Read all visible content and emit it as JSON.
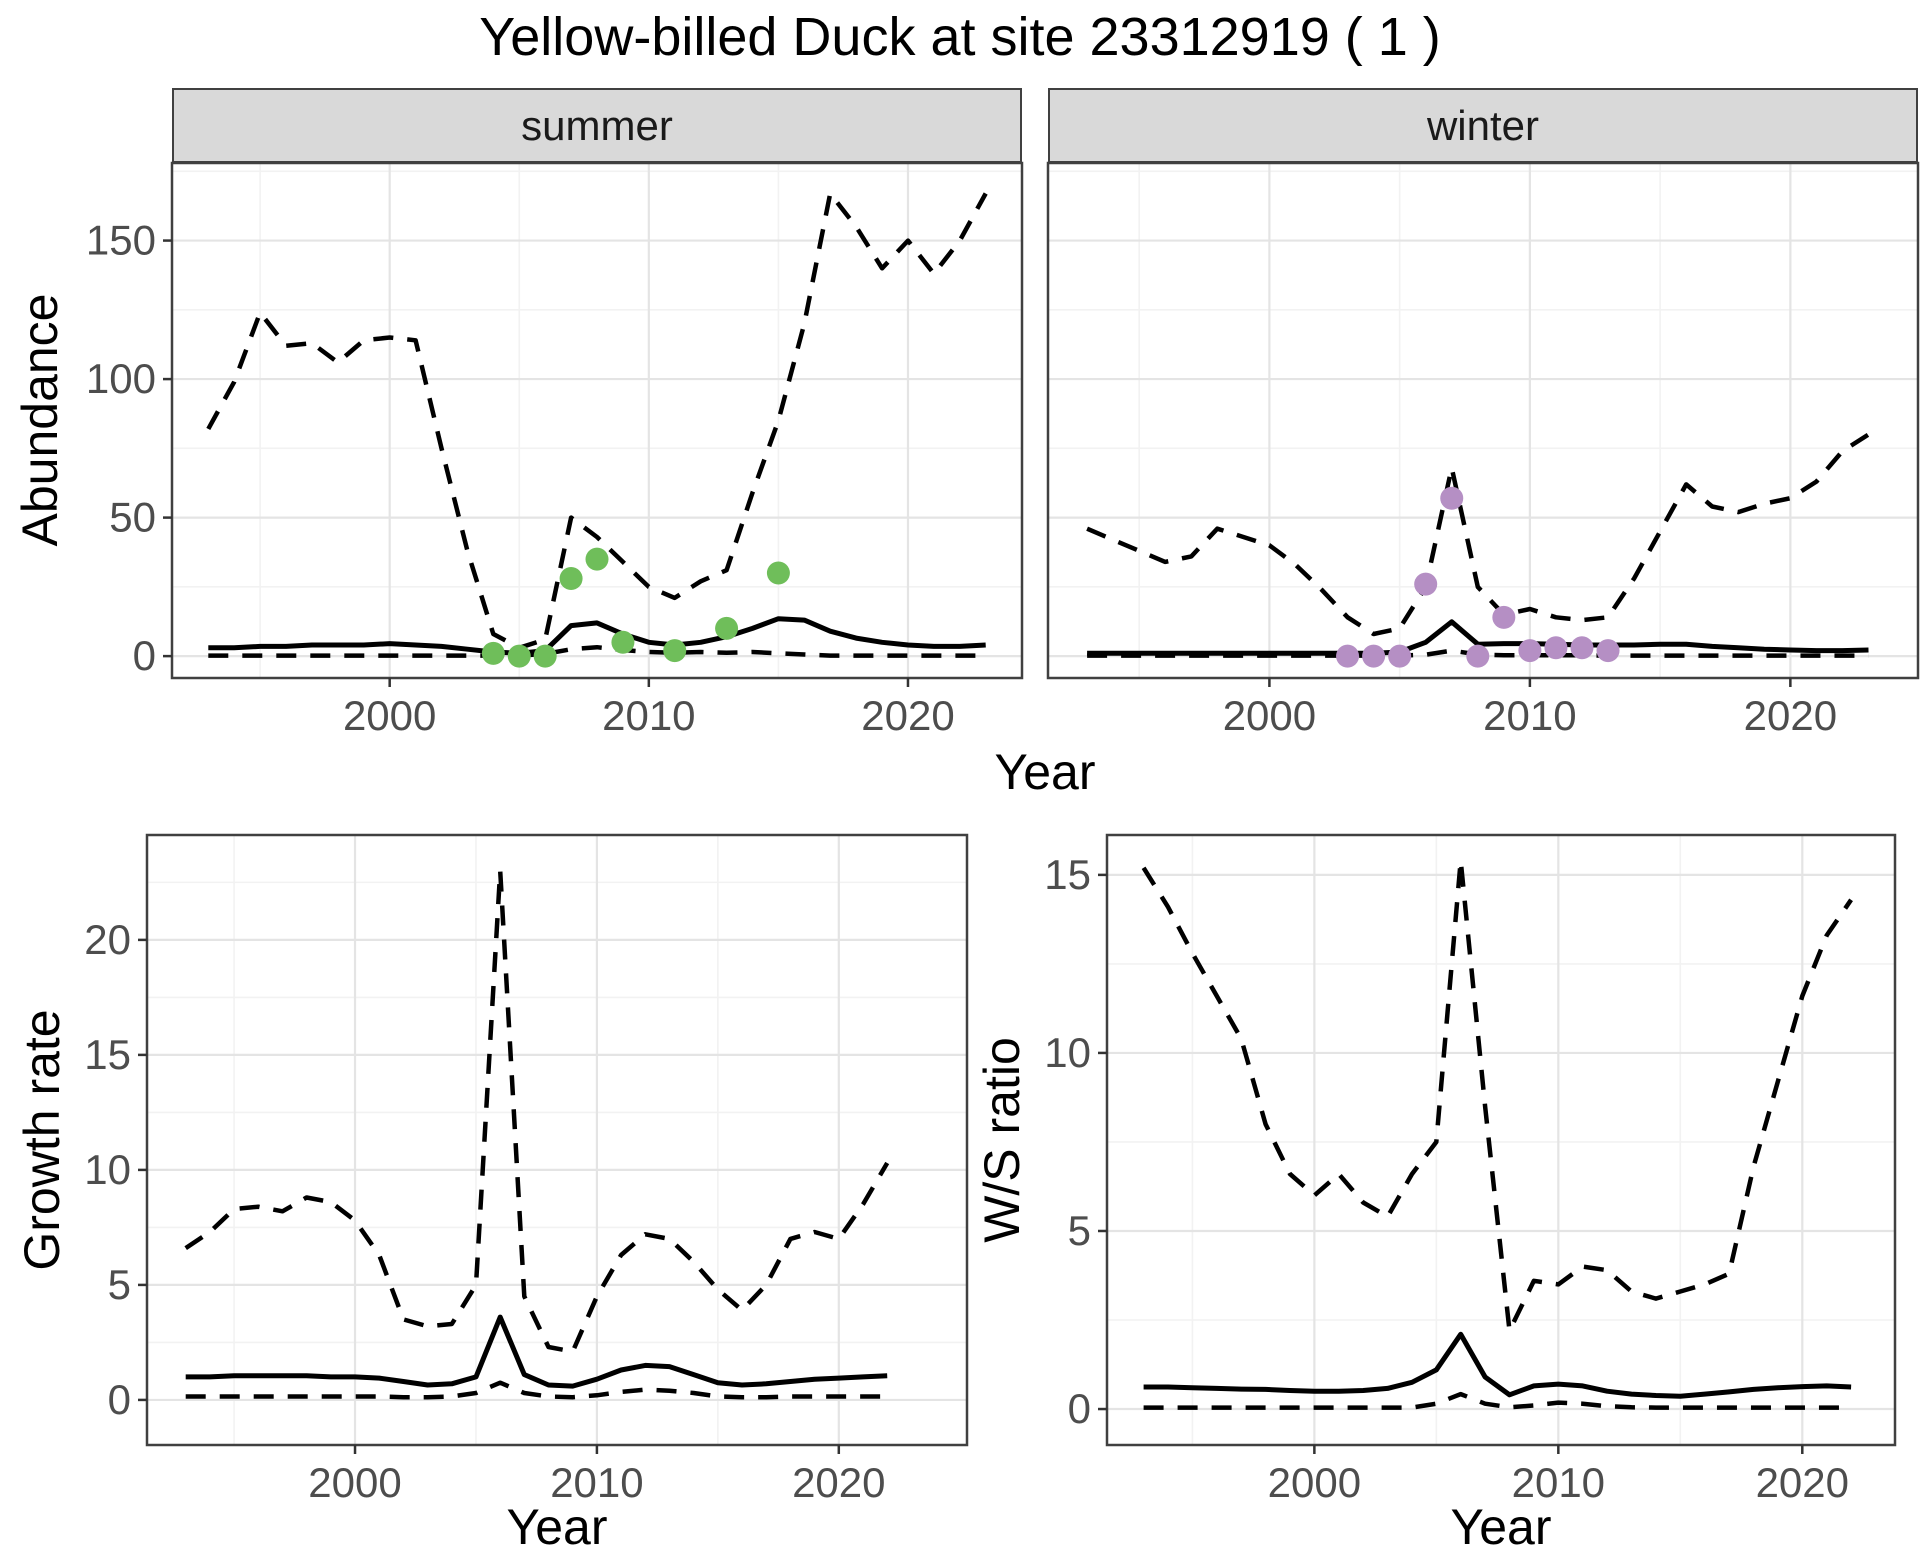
{
  "title": "Yellow-billed Duck at site 23312919 ( 1 )",
  "facets": [
    "summer",
    "winter"
  ],
  "axes": {
    "abundance": "Abundance",
    "growth": "Growth rate",
    "ws": "W/S ratio",
    "year": "Year"
  },
  "colors": {
    "observation_summer": "#6fbe5a",
    "observation_winter": "#b58fc4",
    "line": "#000000",
    "grid_major": "#e4e4e4",
    "grid_minor": "#f2f2f2",
    "panel_border": "#404040",
    "strip_bg": "#d9d9d9",
    "tick_text": "#4d4d4d"
  },
  "chart_data": [
    {
      "id": "abundance-summer",
      "type": "line",
      "facet_label": "summer",
      "xlabel": "Year",
      "ylabel": "Abundance",
      "x": [
        1993,
        1994,
        1995,
        1996,
        1997,
        1998,
        1999,
        2000,
        2001,
        2002,
        2003,
        2004,
        2005,
        2006,
        2007,
        2008,
        2009,
        2010,
        2011,
        2012,
        2013,
        2014,
        2015,
        2016,
        2017,
        2018,
        2019,
        2020,
        2021,
        2022,
        2023
      ],
      "series": [
        {
          "name": "upper-95ci",
          "style": "dashed",
          "values": [
            82,
            99,
            124,
            112,
            113,
            106,
            114,
            115,
            114,
            75,
            38,
            8,
            3,
            6,
            50,
            43,
            34,
            25,
            21,
            27,
            31,
            59,
            85,
            120,
            167,
            155,
            140,
            150,
            138,
            150,
            167
          ]
        },
        {
          "name": "median",
          "style": "solid",
          "values": [
            3,
            3,
            3.5,
            3.5,
            4,
            4,
            4,
            4.5,
            4,
            3.5,
            2.5,
            1.5,
            1,
            2,
            11,
            12,
            8,
            5,
            4,
            5,
            7,
            10,
            13.5,
            13,
            9,
            6.5,
            5,
            4,
            3.5,
            3.5,
            4
          ]
        },
        {
          "name": "lower-95ci",
          "style": "dashed",
          "values": [
            0.2,
            0.2,
            0.2,
            0.2,
            0.2,
            0.2,
            0.2,
            0.2,
            0.2,
            0.2,
            0.2,
            0.2,
            0.2,
            0.8,
            2.5,
            3.2,
            2.2,
            1.5,
            1.2,
            1.5,
            1.2,
            1.5,
            1,
            0.6,
            0.2,
            0.2,
            0.2,
            0.2,
            0.2,
            0.2,
            0.2
          ]
        }
      ],
      "points": {
        "name": "observations",
        "color": "#6fbe5a",
        "data": [
          [
            2004,
            1
          ],
          [
            2005,
            0
          ],
          [
            2006,
            0
          ],
          [
            2007,
            28
          ],
          [
            2008,
            35
          ],
          [
            2009,
            5
          ],
          [
            2011,
            2
          ],
          [
            2013,
            10
          ],
          [
            2015,
            30
          ]
        ]
      },
      "xlim": [
        1991.6,
        2024.4
      ],
      "ylim": [
        -7.9,
        178
      ],
      "xticks": [
        2000,
        2010,
        2020
      ],
      "xminor": [
        1995,
        2005,
        2015
      ],
      "yticks": [
        0,
        50,
        100,
        150
      ],
      "yminor": [
        25,
        75,
        125,
        175
      ],
      "show_yticklabels": true
    },
    {
      "id": "abundance-winter",
      "type": "line",
      "facet_label": "winter",
      "xlabel": "Year",
      "ylabel": "Abundance",
      "x": [
        1993,
        1994,
        1995,
        1996,
        1997,
        1998,
        1999,
        2000,
        2001,
        2002,
        2003,
        2004,
        2005,
        2006,
        2007,
        2008,
        2009,
        2010,
        2011,
        2012,
        2013,
        2014,
        2015,
        2016,
        2017,
        2018,
        2019,
        2020,
        2021,
        2022,
        2023
      ],
      "series": [
        {
          "name": "upper-95ci",
          "style": "dashed",
          "values": [
            46,
            42,
            38,
            34,
            36,
            46,
            43,
            40,
            33,
            24,
            14,
            8,
            10,
            25,
            68,
            25,
            15,
            17,
            14,
            13,
            14,
            28,
            45,
            62,
            54,
            52,
            55,
            57,
            63,
            74,
            80
          ]
        },
        {
          "name": "median",
          "style": "solid",
          "values": [
            1,
            1,
            1,
            1,
            1,
            1,
            1,
            1,
            1,
            1,
            1,
            1,
            1.5,
            5,
            12.4,
            4.3,
            4.5,
            4.5,
            4.3,
            4,
            4,
            4,
            4.3,
            4.3,
            3.5,
            3,
            2.5,
            2.2,
            2,
            2,
            2.2
          ]
        },
        {
          "name": "lower-95ci",
          "style": "dashed",
          "values": [
            0.2,
            0.2,
            0.2,
            0.2,
            0.2,
            0.2,
            0.2,
            0.2,
            0.2,
            0.2,
            0.2,
            0.2,
            0.2,
            0.5,
            2,
            0.6,
            0.3,
            0.3,
            0.3,
            0.3,
            0.2,
            0.2,
            0.2,
            0.2,
            0.2,
            0.2,
            0.2,
            0.2,
            0.2,
            0.2,
            0.2
          ]
        }
      ],
      "points": {
        "name": "observations",
        "color": "#b58fc4",
        "data": [
          [
            2003,
            0
          ],
          [
            2004,
            0
          ],
          [
            2005,
            0
          ],
          [
            2006,
            26
          ],
          [
            2007,
            57
          ],
          [
            2008,
            0
          ],
          [
            2009,
            14
          ],
          [
            2010,
            2
          ],
          [
            2011,
            3
          ],
          [
            2012,
            3
          ],
          [
            2013,
            2
          ]
        ]
      },
      "xlim": [
        1991.5,
        2024.9
      ],
      "ylim": [
        -7.9,
        178
      ],
      "xticks": [
        2000,
        2010,
        2020
      ],
      "xminor": [
        1995,
        2005,
        2015
      ],
      "yticks": [
        0,
        50,
        100,
        150
      ],
      "yminor": [
        25,
        75,
        125,
        175
      ],
      "show_yticklabels": false
    },
    {
      "id": "growth-rate",
      "type": "line",
      "facet_label": null,
      "xlabel": "Year",
      "ylabel": "Growth rate",
      "x": [
        1993,
        1994,
        1995,
        1996,
        1997,
        1998,
        1999,
        2000,
        2001,
        2002,
        2003,
        2004,
        2005,
        2006,
        2007,
        2008,
        2009,
        2010,
        2011,
        2012,
        2013,
        2014,
        2015,
        2016,
        2017,
        2018,
        2019,
        2020,
        2021,
        2022
      ],
      "series": [
        {
          "name": "upper-95ci",
          "style": "dashed",
          "values": [
            6.6,
            7.3,
            8.3,
            8.4,
            8.2,
            8.8,
            8.6,
            7.8,
            6.3,
            3.5,
            3.2,
            3.3,
            5,
            23,
            4.5,
            2.3,
            2.1,
            4.5,
            6.3,
            7.2,
            7,
            6,
            4.8,
            3.9,
            5,
            7,
            7.3,
            7,
            8.5,
            10.3
          ]
        },
        {
          "name": "median",
          "style": "solid",
          "values": [
            1,
            1,
            1.05,
            1.05,
            1.05,
            1.05,
            1,
            1,
            0.95,
            0.8,
            0.65,
            0.7,
            1,
            3.6,
            1.1,
            0.65,
            0.6,
            0.9,
            1.3,
            1.5,
            1.45,
            1.1,
            0.75,
            0.65,
            0.7,
            0.8,
            0.9,
            0.95,
            1,
            1.05
          ]
        },
        {
          "name": "lower-95ci",
          "style": "dashed",
          "values": [
            0.15,
            0.15,
            0.15,
            0.15,
            0.15,
            0.15,
            0.15,
            0.15,
            0.15,
            0.12,
            0.12,
            0.15,
            0.3,
            0.75,
            0.3,
            0.15,
            0.12,
            0.2,
            0.35,
            0.45,
            0.4,
            0.3,
            0.15,
            0.12,
            0.12,
            0.15,
            0.15,
            0.15,
            0.15,
            0.15
          ]
        }
      ],
      "points": null,
      "xlim": [
        1991.4,
        2025.3
      ],
      "ylim": [
        -1.96,
        24.56
      ],
      "xticks": [
        2000,
        2010,
        2020
      ],
      "xminor": [
        1995,
        2005,
        2015
      ],
      "yticks": [
        0,
        5,
        10,
        15,
        20
      ],
      "yminor": [
        2.5,
        7.5,
        12.5,
        17.5,
        22.5
      ],
      "show_yticklabels": true
    },
    {
      "id": "ws-ratio",
      "type": "line",
      "facet_label": null,
      "xlabel": "Year",
      "ylabel": "W/S ratio",
      "x": [
        1993,
        1994,
        1995,
        1996,
        1997,
        1998,
        1999,
        2000,
        2001,
        2002,
        2003,
        2004,
        2005,
        2006,
        2007,
        2008,
        2009,
        2010,
        2011,
        2012,
        2013,
        2014,
        2015,
        2016,
        2017,
        2018,
        2019,
        2020,
        2021,
        2022
      ],
      "series": [
        {
          "name": "upper-95ci",
          "style": "dashed",
          "values": [
            15.2,
            14.1,
            12.8,
            11.6,
            10.4,
            8,
            6.6,
            6,
            6.6,
            5.8,
            5.4,
            6.6,
            7.5,
            15.4,
            8.5,
            2.2,
            3.6,
            3.5,
            4,
            3.9,
            3.3,
            3.1,
            3.3,
            3.5,
            3.8,
            6.8,
            9.2,
            11.6,
            13.3,
            14.3
          ]
        },
        {
          "name": "median",
          "style": "solid",
          "values": [
            0.62,
            0.62,
            0.6,
            0.58,
            0.56,
            0.55,
            0.52,
            0.5,
            0.5,
            0.52,
            0.58,
            0.75,
            1.1,
            2.1,
            0.9,
            0.4,
            0.65,
            0.7,
            0.65,
            0.5,
            0.42,
            0.38,
            0.36,
            0.42,
            0.48,
            0.55,
            0.6,
            0.63,
            0.65,
            0.62
          ]
        },
        {
          "name": "lower-95ci",
          "style": "dashed",
          "values": [
            0.04,
            0.04,
            0.04,
            0.04,
            0.04,
            0.04,
            0.04,
            0.04,
            0.04,
            0.04,
            0.04,
            0.04,
            0.15,
            0.42,
            0.15,
            0.05,
            0.1,
            0.18,
            0.15,
            0.08,
            0.05,
            0.04,
            0.04,
            0.04,
            0.04,
            0.04,
            0.04,
            0.04,
            0.04,
            0.04
          ]
        }
      ],
      "points": null,
      "xlim": [
        1991.5,
        2023.8
      ],
      "ylim": [
        -1.01,
        16.12
      ],
      "xticks": [
        2000,
        2010,
        2020
      ],
      "xminor": [
        1995,
        2005,
        2015
      ],
      "yticks": [
        0,
        5,
        10,
        15
      ],
      "yminor": [
        2.5,
        7.5,
        12.5
      ],
      "show_yticklabels": true
    }
  ]
}
